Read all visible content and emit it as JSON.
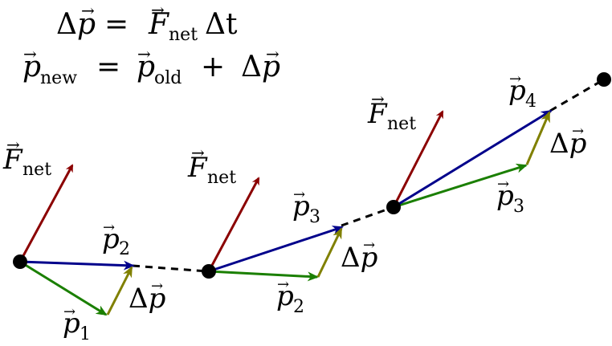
{
  "equations": {
    "line1": {
      "delta": "Δ",
      "p": "p",
      "equals": "=",
      "force": "F",
      "force_sub": "net",
      "dt": "Δt"
    },
    "line2": {
      "p_new": "p",
      "p_new_sub": "new",
      "equals": "=",
      "p_old": "p",
      "p_old_sub": "old",
      "plus": "+",
      "delta": "Δ",
      "p": "p"
    }
  },
  "labels": {
    "f_net_symbol": "F",
    "f_net_sub": "net",
    "p_symbol": "p",
    "delta_p": "Δ",
    "p1_sub": "1",
    "p2_sub": "2",
    "p3_sub": "3",
    "p4_sub": "4"
  },
  "colors": {
    "force": "#8b0000",
    "new_momentum": "#00008b",
    "old_momentum": "#1a7f00",
    "delta_momentum": "#808000",
    "path": "#000000"
  }
}
